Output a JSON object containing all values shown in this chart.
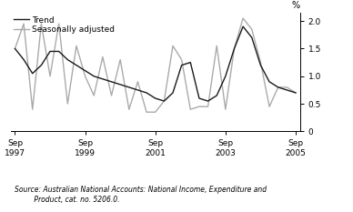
{
  "trend": [
    1.5,
    1.3,
    1.05,
    1.2,
    1.45,
    1.45,
    1.3,
    1.2,
    1.1,
    1.0,
    0.95,
    0.9,
    0.85,
    0.8,
    0.75,
    0.7,
    0.6,
    0.55,
    0.7,
    1.2,
    1.25,
    0.6,
    0.55,
    0.65,
    1.0,
    1.5,
    1.9,
    1.7,
    1.2,
    0.9,
    0.8,
    0.75,
    0.7
  ],
  "seasonally_adjusted": [
    1.5,
    1.95,
    0.4,
    1.95,
    1.0,
    1.95,
    0.5,
    1.55,
    1.0,
    0.65,
    1.35,
    0.65,
    1.3,
    0.4,
    0.9,
    0.35,
    0.35,
    0.55,
    1.55,
    1.3,
    0.4,
    0.45,
    0.45,
    1.55,
    0.4,
    1.5,
    2.05,
    1.85,
    1.25,
    0.45,
    0.8,
    0.8,
    0.7
  ],
  "n_quarters": 33,
  "x_tick_positions": [
    0,
    8,
    16,
    24,
    32
  ],
  "x_tick_labels": [
    "Sep\n1997",
    "Sep\n1999",
    "Sep\n2001",
    "Sep\n2003",
    "Sep\n2005"
  ],
  "y_ticks": [
    0,
    0.5,
    1.0,
    1.5,
    2.0
  ],
  "ylim": [
    0,
    2.15
  ],
  "ylabel": "%",
  "trend_color": "#1a1a1a",
  "seasonal_color": "#aaaaaa",
  "legend_trend": "Trend",
  "legend_seasonal": "Seasonally adjusted",
  "source_line1": "Source: Australian National Accounts: National Income, Expenditure and",
  "source_line2": "         Product, cat. no. 5206.0.",
  "bg_color": "#ffffff"
}
